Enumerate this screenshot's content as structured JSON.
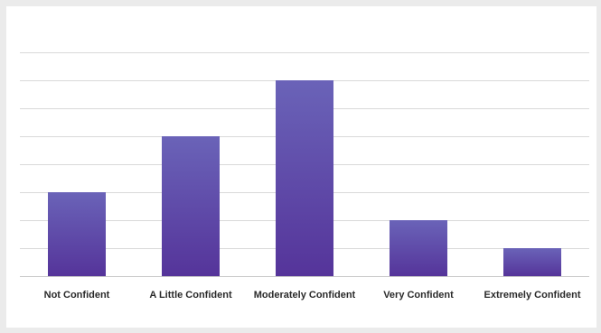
{
  "chart_data": {
    "type": "bar",
    "categories": [
      "Not Confident",
      "A Little Confident",
      "Moderately Confident",
      "Very Confident",
      "Extremely Confident"
    ],
    "values": [
      3,
      5,
      7,
      2,
      1
    ],
    "title": "",
    "xlabel": "",
    "ylabel": "",
    "ylim": [
      0,
      8
    ],
    "grid": true,
    "legend": "none",
    "colors": {
      "bar_top": "#6a63b8",
      "bar_bottom": "#55349a",
      "grid": "#d9d9d9",
      "axis": "#c8c8c8"
    }
  }
}
